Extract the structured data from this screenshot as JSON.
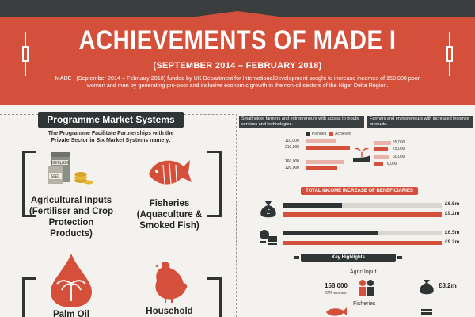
{
  "header": {
    "title": "ACHIEVEMENTS OF MADE I",
    "subtitle": "(SEPTEMBER 2014 – FEBRUARY 2018)",
    "intro": "MADE I (September 2014 – February 2018) funded by UK Department for InternationalDevelopment sought to increase incomes of 150,000 poor women and men by generating pro-poor and inclusive economic growth in the non-oil sectors of the Niger Delta Region."
  },
  "left": {
    "title": "Programme Market Systems",
    "subtitle": "The Programme Facilitate Partnerships with the Private Sector in Six Market Systems namely:",
    "categories": [
      {
        "label": "Agricultural Inputs (Fertiliser and Crop Protection Products)"
      },
      {
        "label": "Fisheries (Aquaculture & Smoked Fish)"
      },
      {
        "label": "Palm Oil"
      },
      {
        "label": "Household"
      }
    ],
    "icon_texts": {
      "fertilizer": "FERTILIZER",
      "seed": "SEED"
    }
  },
  "right": {
    "caption_left": "Smallholder farmers and entrepreneurs with access to inputs, services and technologies.",
    "caption_right": "Farmers and entrepreneurs with increased incomes products.",
    "legend_planned": "Planned",
    "legend_achieved": "Achieved",
    "left_values": [
      "110,000",
      "210,000",
      "160,000",
      "120,000"
    ],
    "right_values": [
      "55,000",
      "75,000",
      "60,000",
      "70,000"
    ],
    "income_title": "TOTAL INCOME INCREASE OF BENEFICIARIES",
    "income_values": [
      "£6.5m",
      "£9.2m",
      "£6.5m",
      "£9.2m"
    ],
    "highlights_title": "Key Highlights",
    "agri_label": "Agric Input",
    "agri_count": "168,000",
    "agri_small": "67% woman",
    "agri_money": "£8.2m",
    "fisheries_label": "Fisheries",
    "currency_symbol": "£"
  },
  "colors": {
    "accent": "#d4503a",
    "dark": "#2f3435",
    "background": "#f4f2ee",
    "planned": "#2f3435",
    "achieved": "#d4503a"
  }
}
